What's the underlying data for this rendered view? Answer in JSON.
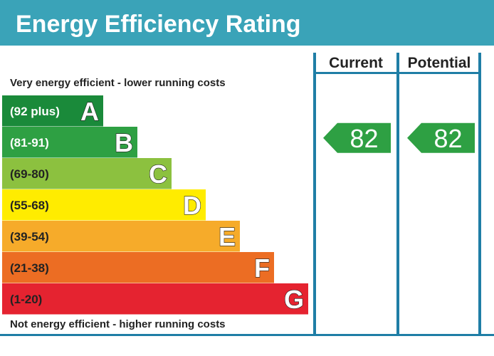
{
  "title": "Energy Efficiency Rating",
  "top_caption": "Very energy efficient - lower running costs",
  "bottom_caption": "Not energy efficient - higher running costs",
  "colors": {
    "title_bar": "#3aa3b8",
    "frame": "#1f7ea6",
    "text_dark": "#222222"
  },
  "chart_data": {
    "type": "bar",
    "categories": [
      "A",
      "B",
      "C",
      "D",
      "E",
      "F",
      "G"
    ],
    "bands": [
      {
        "letter": "A",
        "range": "(92 plus)",
        "min": 92,
        "max": null,
        "color": "#1a8a3a",
        "range_color": "#ffffff"
      },
      {
        "letter": "B",
        "range": "(81-91)",
        "min": 81,
        "max": 91,
        "color": "#2ea043",
        "range_color": "#ffffff"
      },
      {
        "letter": "C",
        "range": "(69-80)",
        "min": 69,
        "max": 80,
        "color": "#8cc13f",
        "range_color": "#222222"
      },
      {
        "letter": "D",
        "range": "(55-68)",
        "min": 55,
        "max": 68,
        "color": "#ffec00",
        "range_color": "#222222"
      },
      {
        "letter": "E",
        "range": "(39-54)",
        "min": 39,
        "max": 54,
        "color": "#f6ab2a",
        "range_color": "#222222"
      },
      {
        "letter": "F",
        "range": "(21-38)",
        "min": 21,
        "max": 38,
        "color": "#ec6d23",
        "range_color": "#222222"
      },
      {
        "letter": "G",
        "range": "(1-20)",
        "min": 1,
        "max": 20,
        "color": "#e52330",
        "range_color": "#222222"
      }
    ],
    "columns": [
      {
        "label": "Current",
        "value": 82,
        "band": "B",
        "color": "#2ea043"
      },
      {
        "label": "Potential",
        "value": 82,
        "band": "B",
        "color": "#2ea043"
      }
    ]
  }
}
